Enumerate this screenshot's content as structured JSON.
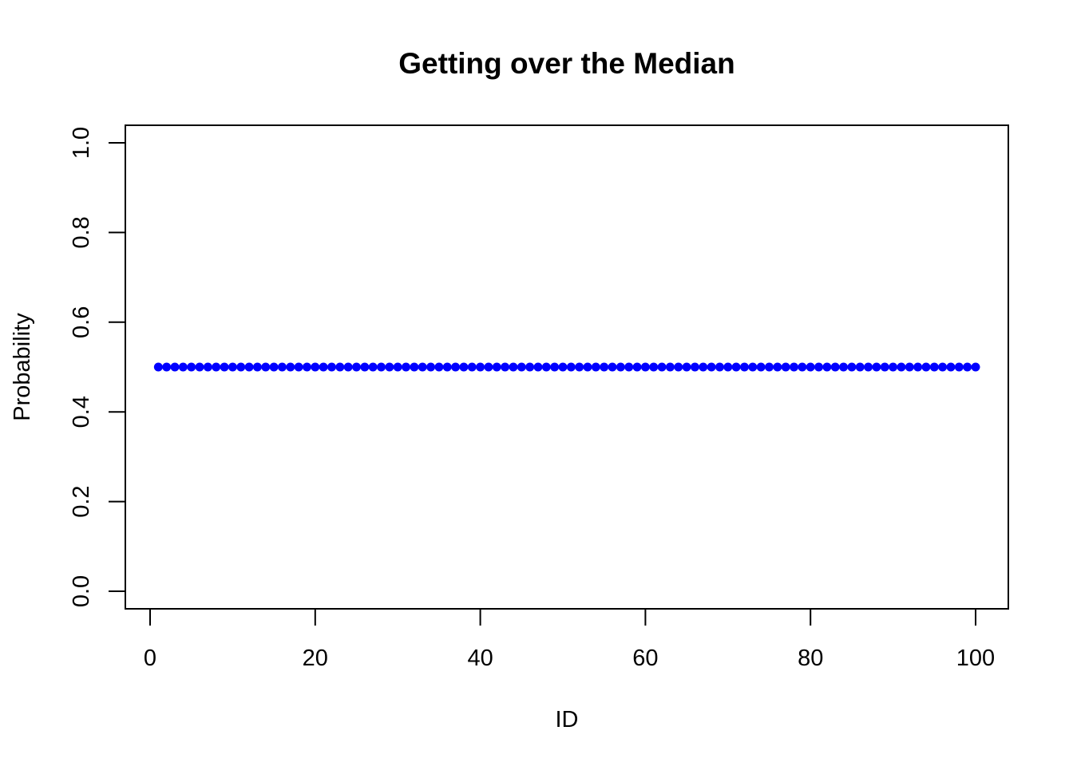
{
  "chart_data": {
    "type": "scatter",
    "title": "Getting over the Median",
    "xlabel": "ID",
    "ylabel": "Probability",
    "xlim": [
      0,
      100
    ],
    "ylim": [
      0,
      1
    ],
    "xticks": [
      0,
      20,
      40,
      60,
      80,
      100
    ],
    "xtick_labels": [
      "0",
      "20",
      "40",
      "60",
      "80",
      "100"
    ],
    "yticks": [
      0,
      0.2,
      0.4,
      0.6,
      0.8,
      1.0
    ],
    "ytick_labels": [
      "0.0",
      "0.2",
      "0.4",
      "0.6",
      "0.8",
      "1.0"
    ],
    "grid": false,
    "series": [
      {
        "color": "#0000ff",
        "x_start": 1,
        "x_end": 100,
        "x_step": 1,
        "y_constant": 0.5
      }
    ]
  }
}
